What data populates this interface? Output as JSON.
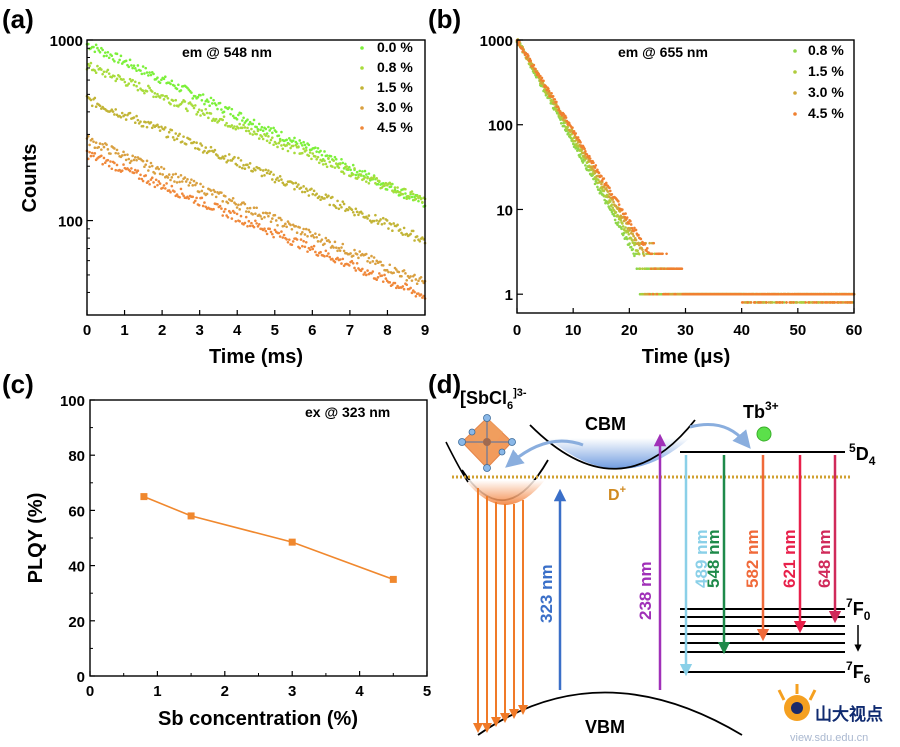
{
  "chart_data": [
    {
      "panel": "(a)",
      "type": "scatter",
      "yscale": "log",
      "xlabel": "Time (ms)",
      "ylabel": "Counts",
      "xlim": [
        0,
        9
      ],
      "ylim": [
        30,
        1000
      ],
      "xticks": [
        "0",
        "1",
        "2",
        "3",
        "4",
        "5",
        "6",
        "7",
        "8",
        "9"
      ],
      "yticks": [
        "100",
        "1000"
      ],
      "annotation": "em @ 548 nm",
      "legend_position": "top-right",
      "series": [
        {
          "name": "0.0 %",
          "color": "#7cf03a",
          "y0": 950,
          "y9": 125
        },
        {
          "name": "0.8 %",
          "color": "#a8dc3c",
          "y0": 720,
          "y9": 128
        },
        {
          "name": "1.5 %",
          "color": "#c2b436",
          "y0": 470,
          "y9": 78
        },
        {
          "name": "3.0 %",
          "color": "#d9a040",
          "y0": 280,
          "y9": 45
        },
        {
          "name": "4.5 %",
          "color": "#f0883a",
          "y0": 235,
          "y9": 38
        }
      ]
    },
    {
      "panel": "(b)",
      "type": "scatter",
      "yscale": "log",
      "xlabel": "Time (μs)",
      "ylabel": "",
      "xlim": [
        0,
        60
      ],
      "ylim": [
        0.6,
        1000
      ],
      "xticks": [
        "0",
        "10",
        "20",
        "30",
        "40",
        "50",
        "60"
      ],
      "yticks": [
        "1",
        "10",
        "100",
        "1000"
      ],
      "annotation": "em @ 655 nm",
      "legend_position": "top-right",
      "series": [
        {
          "name": "0.8 %",
          "color": "#8fd64a"
        },
        {
          "name": "1.5 %",
          "color": "#b0cc3c"
        },
        {
          "name": "3.0 %",
          "color": "#d0a83a"
        },
        {
          "name": "4.5 %",
          "color": "#f08030"
        }
      ]
    },
    {
      "panel": "(c)",
      "type": "line",
      "xlabel": "Sb concentration (%)",
      "ylabel": "PLQY (%)",
      "xlim": [
        0,
        5
      ],
      "ylim": [
        0,
        100
      ],
      "xticks": [
        "0",
        "1",
        "2",
        "3",
        "4",
        "5"
      ],
      "yticks": [
        "0",
        "20",
        "40",
        "60",
        "80",
        "100"
      ],
      "annotation": "ex @ 323 nm",
      "x": [
        0.8,
        1.5,
        3.0,
        4.5
      ],
      "y": [
        65,
        58,
        48.5,
        35
      ],
      "color": "#f0882e"
    }
  ],
  "panels": {
    "a": "(a)",
    "b": "(b)",
    "c": "(c)",
    "d": "(d)"
  },
  "diagram": {
    "sbcl_label": "[SbCl",
    "sbcl_sub": "6",
    "sbcl_sup": "]3-",
    "cbm": "CBM",
    "vbm": "VBM",
    "tb_label": "Tb",
    "tb_sup": "3+",
    "d4_label": "5",
    "d4_main": "D",
    "d4_sub": "4",
    "f0_label": "7",
    "f0_main": "F",
    "f0_sub": "0",
    "f6_label": "7",
    "f6_main": "F",
    "f6_sub": "6",
    "dplus": "D",
    "dplus_sup": "+",
    "transitions": [
      {
        "label": "323 nm",
        "color": "#3a6fc8"
      },
      {
        "label": "238 nm",
        "color": "#a030b8"
      },
      {
        "label": "489 nm",
        "color": "#8ad0e8"
      },
      {
        "label": "548 nm",
        "color": "#1e8a4a"
      },
      {
        "label": "582 nm",
        "color": "#f06a3a"
      },
      {
        "label": "621 nm",
        "color": "#e8204a"
      },
      {
        "label": "648 nm",
        "color": "#d02a5a"
      }
    ]
  },
  "watermark": {
    "text": "山大视点",
    "url": "view.sdu.edu.cn"
  }
}
